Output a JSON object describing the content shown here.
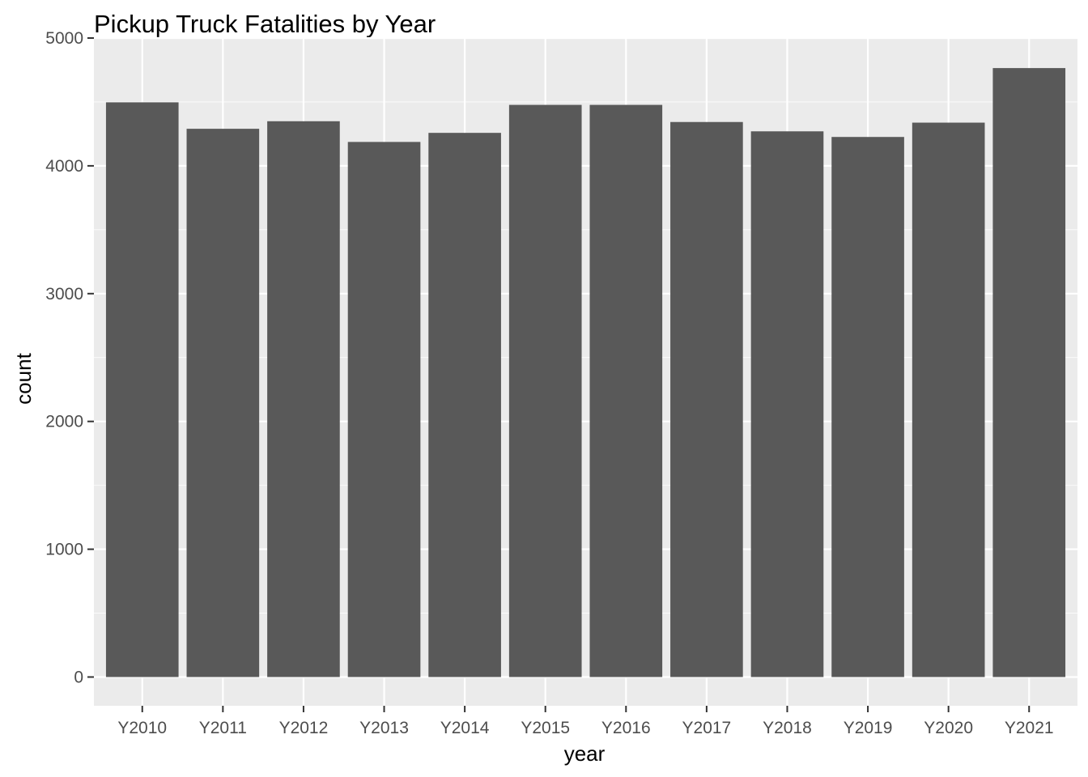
{
  "chart_data": {
    "type": "bar",
    "title": "Pickup Truck Fatalities by Year",
    "xlabel": "year",
    "ylabel": "count",
    "categories": [
      "Y2010",
      "Y2011",
      "Y2012",
      "Y2013",
      "Y2014",
      "Y2015",
      "Y2016",
      "Y2017",
      "Y2018",
      "Y2019",
      "Y2020",
      "Y2021"
    ],
    "values": [
      4497,
      4290,
      4349,
      4187,
      4258,
      4477,
      4477,
      4343,
      4270,
      4226,
      4338,
      4765
    ],
    "ylim": [
      -225,
      5000
    ],
    "yticks": [
      0,
      1000,
      2000,
      3000,
      4000,
      5000
    ],
    "grid": true,
    "legend": "none",
    "colors": {
      "bar": "#595959",
      "panel": "#ebebeb",
      "grid_major": "#ffffff",
      "grid_minor": "#f5f5f5",
      "tick_text": "#4d4d4d",
      "tick_mark": "#333333"
    }
  }
}
